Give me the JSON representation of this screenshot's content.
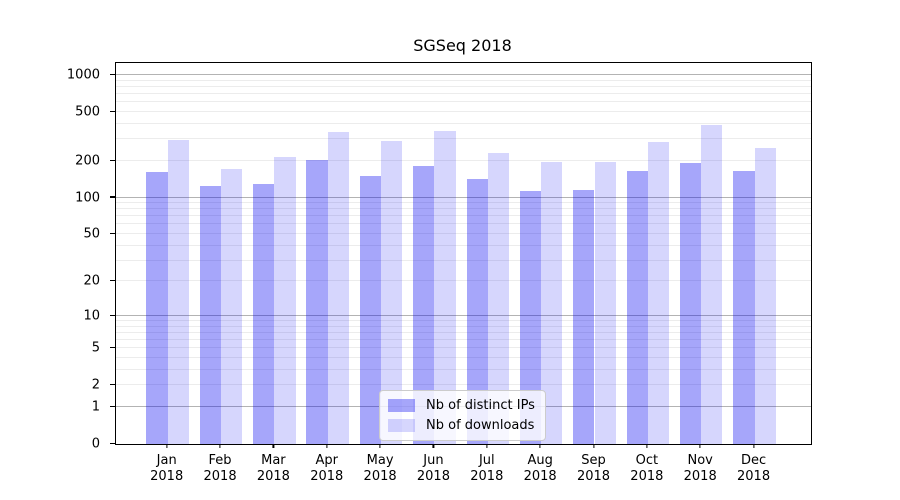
{
  "chart_data": {
    "type": "bar",
    "title": "SGSeq 2018",
    "categories": [
      "Jan 2018",
      "Feb 2018",
      "Mar 2018",
      "Apr 2018",
      "May 2018",
      "Jun 2018",
      "Jul 2018",
      "Aug 2018",
      "Sep 2018",
      "Oct 2018",
      "Nov 2018",
      "Dec 2018"
    ],
    "series": [
      {
        "name": "Nb of distinct IPs",
        "color": "rgba(0,0,240,0.35)",
        "values": [
          162,
          124,
          130,
          202,
          150,
          181,
          141,
          113,
          116,
          164,
          193,
          164
        ]
      },
      {
        "name": "Nb of downloads",
        "color": "rgba(0,0,240,0.16)",
        "values": [
          293,
          170,
          214,
          343,
          288,
          347,
          231,
          197,
          195,
          284,
          394,
          256
        ]
      }
    ],
    "yscale": "log1p",
    "ylim": [
      0,
      1253
    ],
    "yticks": [
      0,
      1,
      2,
      5,
      10,
      20,
      50,
      100,
      200,
      500,
      1000
    ],
    "grid": {
      "major_values": [
        1,
        10,
        100,
        1000
      ],
      "minor_values": [
        2,
        3,
        4,
        5,
        6,
        7,
        8,
        9,
        20,
        30,
        40,
        50,
        60,
        70,
        80,
        90,
        200,
        300,
        400,
        500,
        600,
        700,
        800,
        900
      ],
      "major_color": "#b3b3b3",
      "minor_color": "#ececec"
    },
    "legend_position": "lower center, inside plot",
    "xlabel": "",
    "ylabel": ""
  }
}
